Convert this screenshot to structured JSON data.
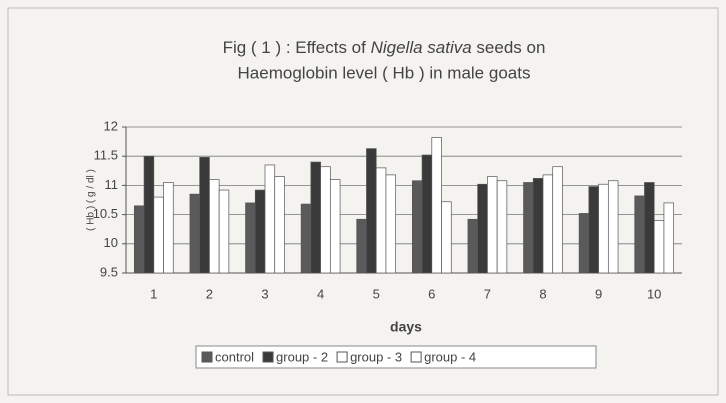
{
  "chart_data": {
    "type": "bar",
    "title": [
      "Fig ( 1 ) : Effects of ",
      "Nigella sativa",
      " seeds on",
      "Haemoglobin level ( Hb ) in male  goats"
    ],
    "xlabel": "days",
    "ylabel": "( Hb ) ( g / dl )",
    "categories": [
      "1",
      "2",
      "3",
      "4",
      "5",
      "6",
      "7",
      "8",
      "9",
      "10"
    ],
    "series": [
      {
        "name": "control",
        "color": "#5a5a5a",
        "values": [
          10.65,
          10.85,
          10.7,
          10.68,
          10.42,
          11.08,
          10.42,
          11.05,
          10.52,
          10.82
        ]
      },
      {
        "name": "group - 2",
        "color": "#3a3a3a",
        "values": [
          11.5,
          11.48,
          10.92,
          11.4,
          11.63,
          11.52,
          11.02,
          11.12,
          10.98,
          11.05
        ]
      },
      {
        "name": "group - 3",
        "color": "#ffffff",
        "values": [
          10.8,
          11.1,
          11.35,
          11.32,
          11.3,
          11.82,
          11.15,
          11.18,
          11.02,
          10.4
        ]
      },
      {
        "name": "group - 4",
        "color": "#ffffff",
        "values": [
          11.05,
          10.92,
          11.15,
          11.1,
          11.18,
          10.72,
          11.08,
          11.32,
          11.08,
          10.7
        ]
      }
    ],
    "ylim": [
      9.5,
      12
    ],
    "yticks": [
      9.5,
      10,
      10.5,
      11,
      11.5,
      12
    ],
    "grid": true
  }
}
